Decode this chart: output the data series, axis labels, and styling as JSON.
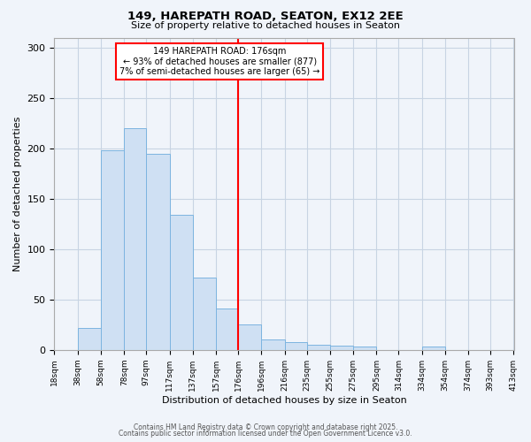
{
  "title": "149, HAREPATH ROAD, SEATON, EX12 2EE",
  "subtitle": "Size of property relative to detached houses in Seaton",
  "xlabel": "Distribution of detached houses by size in Seaton",
  "ylabel": "Number of detached properties",
  "bar_color": "#cfe0f3",
  "bar_edge_color": "#7cb4e0",
  "grid_color": "#c8d4e3",
  "background_color": "#f0f4fa",
  "vline_x": 176,
  "vline_color": "red",
  "annotation_title": "149 HAREPATH ROAD: 176sqm",
  "annotation_line1": "← 93% of detached houses are smaller (877)",
  "annotation_line2": "7% of semi-detached houses are larger (65) →",
  "annotation_box_color": "white",
  "annotation_box_edge": "red",
  "bins": [
    18,
    38,
    58,
    78,
    97,
    117,
    137,
    157,
    176,
    196,
    216,
    235,
    255,
    275,
    295,
    314,
    334,
    354,
    374,
    393,
    413
  ],
  "counts": [
    0,
    22,
    198,
    220,
    195,
    134,
    72,
    41,
    25,
    10,
    8,
    5,
    4,
    3,
    0,
    0,
    3,
    0,
    0,
    0
  ],
  "ylim": [
    0,
    310
  ],
  "yticks": [
    0,
    50,
    100,
    150,
    200,
    250,
    300
  ],
  "footer1": "Contains HM Land Registry data © Crown copyright and database right 2025.",
  "footer2": "Contains public sector information licensed under the Open Government Licence v3.0."
}
